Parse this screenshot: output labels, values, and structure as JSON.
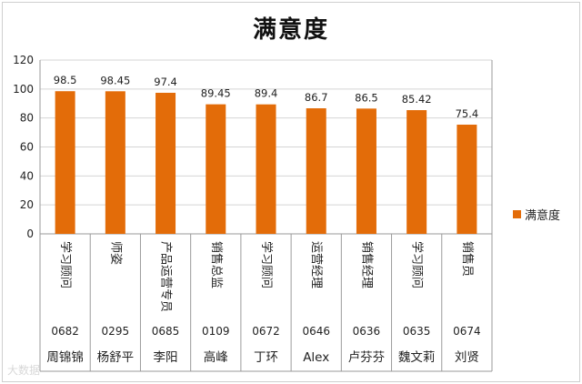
{
  "chart_data": {
    "type": "bar",
    "title": "满意度",
    "categories": [
      "学习顾问 0682 周锦锦",
      "师姿 0295 杨舒平",
      "产品运营专员 0685 李阳",
      "销售总监 0109 高峰",
      "学习顾问 0672 丁环",
      "运营经理 0646 Alex",
      "销售经理 0636 卢芬芬",
      "学习顾问 0635 魏文莉",
      "销售员 0674 刘贤"
    ],
    "roles": [
      "学习顾问",
      "师姿",
      "产品运营专员",
      "销售总监",
      "学习顾问",
      "运营经理",
      "销售经理",
      "学习顾问",
      "销售员"
    ],
    "ids": [
      "0682",
      "0295",
      "0685",
      "0109",
      "0672",
      "0646",
      "0636",
      "0635",
      "0674"
    ],
    "names": [
      "周锦锦",
      "杨舒平",
      "李阳",
      "高峰",
      "丁环",
      "Alex",
      "卢芬芬",
      "魏文莉",
      "刘贤"
    ],
    "series": [
      {
        "name": "满意度",
        "values": [
          98.5,
          98.45,
          97.4,
          89.45,
          89.4,
          86.7,
          86.5,
          85.42,
          75.4
        ]
      }
    ],
    "data_labels": [
      "98.5",
      "98.45",
      "97.4",
      "89.45",
      "89.4",
      "86.7",
      "86.5",
      "85.42",
      "75.4"
    ],
    "ylim": [
      0,
      120
    ],
    "yticks": [
      0,
      20,
      40,
      60,
      80,
      100,
      120
    ],
    "grid": true,
    "legend_position": "right",
    "bar_color": "#e36c09"
  },
  "watermark": "大数据"
}
